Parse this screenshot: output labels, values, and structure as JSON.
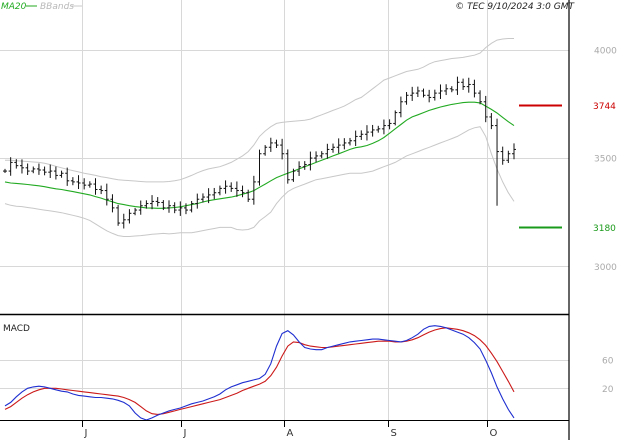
{
  "header": {
    "ma_label": "MA20",
    "bb_label": "BBands",
    "copyright": "© TEC 9/10/2024 3:0 GMT"
  },
  "colors": {
    "ma": "#22aa22",
    "bands": "#c8c8c8",
    "price": "#111111",
    "resistance": "#cc0000",
    "support": "#1a9a1a",
    "macd": "#1f2fd0",
    "signal": "#cc1a1a",
    "grid": "#d8d8d8"
  },
  "chart_data": [
    {
      "type": "ohlc",
      "y_axis_labels": [
        "4000",
        "3500",
        "3000"
      ],
      "ylim": [
        2780,
        4230
      ],
      "x_ticks": [
        "J",
        "J",
        "A",
        "S",
        "O"
      ],
      "x_tick_dates": [
        "2024-06-01",
        "2024-07-01",
        "2024-08-01",
        "2024-09-01",
        "2024-10-01"
      ],
      "levels": [
        {
          "name": "resistance",
          "value": 3744,
          "label": "3744"
        },
        {
          "name": "support",
          "value": 3180,
          "label": "3180"
        }
      ],
      "close": [
        3440,
        3480,
        3465,
        3455,
        3440,
        3450,
        3445,
        3435,
        3440,
        3420,
        3430,
        3395,
        3390,
        3385,
        3375,
        3380,
        3355,
        3350,
        3310,
        3270,
        3200,
        3215,
        3245,
        3260,
        3280,
        3290,
        3300,
        3295,
        3270,
        3280,
        3260,
        3270,
        3260,
        3290,
        3310,
        3320,
        3330,
        3340,
        3360,
        3370,
        3360,
        3350,
        3340,
        3310,
        3390,
        3520,
        3550,
        3570,
        3560,
        3520,
        3400,
        3440,
        3460,
        3470,
        3500,
        3510,
        3520,
        3540,
        3550,
        3560,
        3570,
        3580,
        3600,
        3610,
        3620,
        3630,
        3635,
        3650,
        3660,
        3710,
        3760,
        3790,
        3800,
        3810,
        3790,
        3780,
        3800,
        3810,
        3820,
        3815,
        3850,
        3830,
        3840,
        3800,
        3760,
        3690,
        3650,
        3530,
        3490,
        3520,
        3540
      ],
      "ma20": [
        3390,
        3385,
        3383,
        3381,
        3378,
        3375,
        3372,
        3368,
        3363,
        3358,
        3355,
        3350,
        3345,
        3340,
        3335,
        3330,
        3322,
        3315,
        3306,
        3298,
        3290,
        3285,
        3280,
        3276,
        3273,
        3270,
        3269,
        3268,
        3268,
        3270,
        3272,
        3275,
        3280,
        3285,
        3290,
        3297,
        3303,
        3308,
        3312,
        3316,
        3320,
        3326,
        3333,
        3340,
        3350,
        3365,
        3380,
        3395,
        3410,
        3420,
        3430,
        3440,
        3450,
        3460,
        3470,
        3480,
        3490,
        3500,
        3510,
        3520,
        3530,
        3540,
        3548,
        3552,
        3558,
        3568,
        3580,
        3595,
        3615,
        3635,
        3655,
        3675,
        3690,
        3700,
        3710,
        3720,
        3728,
        3736,
        3742,
        3748,
        3752,
        3756,
        3758,
        3758,
        3755,
        3740,
        3725,
        3708,
        3688,
        3668,
        3650
      ],
      "bb_upper": [
        3490,
        3490,
        3488,
        3486,
        3484,
        3482,
        3480,
        3476,
        3470,
        3462,
        3455,
        3448,
        3442,
        3436,
        3430,
        3425,
        3420,
        3414,
        3410,
        3405,
        3400,
        3398,
        3396,
        3394,
        3392,
        3390,
        3390,
        3390,
        3390,
        3392,
        3395,
        3400,
        3410,
        3420,
        3432,
        3442,
        3450,
        3455,
        3460,
        3470,
        3480,
        3495,
        3510,
        3530,
        3560,
        3600,
        3625,
        3645,
        3660,
        3665,
        3668,
        3670,
        3672,
        3675,
        3680,
        3690,
        3700,
        3710,
        3720,
        3730,
        3740,
        3755,
        3770,
        3780,
        3800,
        3820,
        3840,
        3860,
        3870,
        3880,
        3890,
        3900,
        3905,
        3910,
        3920,
        3935,
        3945,
        3950,
        3955,
        3960,
        3962,
        3965,
        3970,
        3975,
        3985,
        4010,
        4030,
        4045,
        4050,
        4052,
        4052
      ],
      "bb_lower": [
        3290,
        3282,
        3278,
        3276,
        3272,
        3268,
        3264,
        3260,
        3256,
        3252,
        3248,
        3242,
        3236,
        3230,
        3222,
        3212,
        3196,
        3180,
        3164,
        3152,
        3142,
        3138,
        3138,
        3140,
        3142,
        3145,
        3148,
        3150,
        3152,
        3150,
        3152,
        3155,
        3155,
        3155,
        3160,
        3165,
        3170,
        3175,
        3180,
        3180,
        3180,
        3170,
        3168,
        3170,
        3180,
        3210,
        3230,
        3250,
        3290,
        3320,
        3345,
        3360,
        3370,
        3380,
        3390,
        3400,
        3405,
        3410,
        3415,
        3420,
        3425,
        3430,
        3430,
        3430,
        3435,
        3440,
        3450,
        3460,
        3470,
        3480,
        3495,
        3510,
        3520,
        3530,
        3540,
        3550,
        3560,
        3570,
        3580,
        3590,
        3600,
        3615,
        3630,
        3640,
        3645,
        3600,
        3520,
        3450,
        3390,
        3340,
        3300
      ]
    },
    {
      "type": "line",
      "title": "MACD",
      "y_axis_labels": [
        "60",
        "20"
      ],
      "ylim": [
        -25,
        120
      ],
      "series": [
        {
          "values": [
            -5,
            0,
            8,
            15,
            20,
            22,
            23,
            22,
            20,
            18,
            16,
            15,
            12,
            10,
            9,
            8,
            7,
            7,
            6,
            5,
            3,
            0,
            -5,
            -15,
            -22,
            -25,
            -22,
            -18,
            -15,
            -12,
            -10,
            -8,
            -5,
            -2,
            0,
            2,
            5,
            8,
            12,
            18,
            22,
            25,
            28,
            30,
            32,
            34,
            40,
            55,
            80,
            98,
            102,
            96,
            86,
            78,
            76,
            75,
            75,
            78,
            80,
            82,
            84,
            86,
            87,
            88,
            89,
            90,
            90,
            89,
            88,
            87,
            86,
            88,
            92,
            97,
            104,
            108,
            109,
            108,
            106,
            103,
            100,
            97,
            92,
            85,
            76,
            60,
            42,
            22,
            5,
            -10,
            -22
          ]
        },
        {
          "values": [
            -10,
            -6,
            0,
            6,
            11,
            15,
            18,
            20,
            20,
            20,
            19,
            18,
            17,
            16,
            15,
            14,
            13,
            12,
            11,
            10,
            9,
            7,
            4,
            0,
            -6,
            -12,
            -16,
            -17,
            -16,
            -14,
            -12,
            -10,
            -8,
            -6,
            -4,
            -2,
            0,
            2,
            4,
            7,
            10,
            13,
            17,
            20,
            23,
            26,
            30,
            38,
            50,
            66,
            80,
            86,
            85,
            82,
            80,
            79,
            78,
            78,
            79,
            80,
            81,
            82,
            83,
            84,
            85,
            86,
            87,
            87,
            87,
            86,
            86,
            87,
            89,
            92,
            96,
            100,
            103,
            105,
            106,
            105,
            104,
            102,
            99,
            95,
            89,
            81,
            70,
            58,
            44,
            30,
            15
          ]
        }
      ]
    }
  ]
}
